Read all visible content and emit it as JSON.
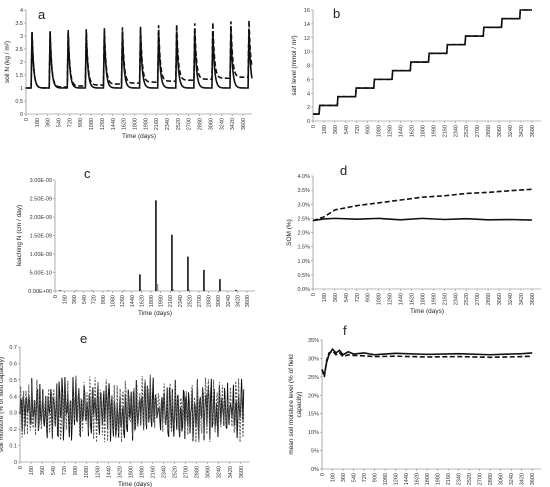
{
  "chart_data": [
    {
      "panel": "a",
      "type": "line",
      "xlabel": "Time (days)",
      "ylabel": "soil N (kg / m²)",
      "ylim": [
        0,
        4
      ],
      "yticks": [
        "0",
        "0.5",
        "1",
        "1.5",
        "2",
        "2.5",
        "3",
        "3.5",
        "4"
      ],
      "xticks": [
        "0",
        "180",
        "360",
        "540",
        "720",
        "900",
        "1080",
        "1260",
        "1440",
        "1620",
        "1800",
        "1980",
        "2160",
        "2340",
        "2520",
        "2700",
        "2880",
        "3060",
        "3240",
        "3420",
        "3600"
      ],
      "series": [
        {
          "style": "solid",
          "cycle": {
            "period": 300,
            "first_peak_day": 100,
            "base": [
              1.0,
              1.0
            ],
            "peak": [
              3.15,
              3.2
            ]
          }
        },
        {
          "style": "dashed",
          "cycle": {
            "period": 300,
            "first_peak_day": 100,
            "base": [
              1.0,
              1.45
            ],
            "peak": [
              3.15,
              3.6
            ]
          }
        }
      ]
    },
    {
      "panel": "b",
      "type": "line",
      "xlabel": "",
      "ylabel": "salt level (mmol / m²)",
      "ylim": [
        0,
        16
      ],
      "yticks": [
        "0",
        "2",
        "4",
        "6",
        "8",
        "10",
        "12",
        "14",
        "16"
      ],
      "xticks": [
        "0",
        "180",
        "360",
        "540",
        "720",
        "900",
        "1080",
        "1260",
        "1440",
        "1620",
        "1800",
        "1980",
        "2160",
        "2340",
        "2520",
        "2700",
        "2880",
        "3060",
        "3240",
        "3420",
        "3600"
      ],
      "series": [
        {
          "style": "solid",
          "steps": {
            "start_day": 0,
            "start_value": 1.0,
            "step_days": 300,
            "first_step_day": 100,
            "step_size": 1.25,
            "end_day": 3600
          }
        },
        {
          "style": "dashed",
          "steps": {
            "start_day": 0,
            "start_value": 1.0,
            "step_days": 300,
            "first_step_day": 100,
            "step_size": 1.25,
            "end_day": 3600
          }
        }
      ]
    },
    {
      "panel": "c",
      "type": "bar",
      "xlabel": "Time (days)",
      "ylabel": "leaching N (cm / day)",
      "ylim": [
        0,
        3e-09
      ],
      "yticks": [
        "0.00E+00",
        "5.00E-10",
        "1.00E-09",
        "1.50E-09",
        "2.00E-09",
        "2.50E-09",
        "3.00E-09"
      ],
      "xticks": [
        "0",
        "180",
        "360",
        "540",
        "720",
        "900",
        "1080",
        "1260",
        "1440",
        "1620",
        "1800",
        "1980",
        "2160",
        "2340",
        "2520",
        "2700",
        "2880",
        "3060",
        "3240",
        "3420",
        "3600"
      ],
      "series": [
        {
          "style": "solid",
          "x": [
            100,
            400,
            700,
            1000,
            1300,
            1600,
            1900,
            2200,
            2500,
            2800,
            3100,
            3400
          ],
          "values": [
            2e-11,
            1e-11,
            1e-11,
            1e-11,
            1e-11,
            4.5e-10,
            2.45e-09,
            1.52e-09,
            9.3e-10,
            5.7e-10,
            3.2e-10,
            3e-11
          ]
        },
        {
          "style": "dashed",
          "x": [
            100,
            400,
            700,
            1000,
            1300,
            1600,
            1900,
            2200,
            2500,
            2800,
            3100,
            3400
          ],
          "values": [
            2e-11,
            1e-11,
            1e-11,
            1e-11,
            1e-11,
            2e-11,
            1.9e-10,
            5e-11,
            3e-11,
            2e-11,
            1e-11,
            1e-11
          ]
        }
      ]
    },
    {
      "panel": "d",
      "type": "line",
      "xlabel": "Time (days)",
      "ylabel": "SOM (%)",
      "ylim": [
        0,
        4
      ],
      "yticks": [
        "0.0%",
        "0.5%",
        "1.0%",
        "1.5%",
        "2.0%",
        "2.5%",
        "3.0%",
        "3.5%",
        "4.0%"
      ],
      "xticks": [
        "0",
        "180",
        "360",
        "540",
        "720",
        "900",
        "1080",
        "1260",
        "1440",
        "1620",
        "1800",
        "1980",
        "2160",
        "2340",
        "2520",
        "2700",
        "2880",
        "3060",
        "3240",
        "3420",
        "3600"
      ],
      "series": [
        {
          "style": "solid",
          "x": [
            0,
            180,
            360,
            720,
            1080,
            1440,
            1800,
            2160,
            2520,
            2880,
            3240,
            3600
          ],
          "values": [
            2.42,
            2.48,
            2.5,
            2.47,
            2.5,
            2.45,
            2.5,
            2.46,
            2.49,
            2.45,
            2.46,
            2.44
          ]
        },
        {
          "style": "dashed",
          "x": [
            0,
            180,
            360,
            720,
            1080,
            1440,
            1800,
            2160,
            2520,
            2880,
            3240,
            3600
          ],
          "values": [
            2.42,
            2.55,
            2.8,
            2.95,
            3.05,
            3.15,
            3.25,
            3.3,
            3.38,
            3.42,
            3.48,
            3.53
          ]
        }
      ]
    },
    {
      "panel": "e",
      "type": "line",
      "xlabel": "Time (days)",
      "ylabel": "soil moisture (% of field capacity)",
      "ylim": [
        0,
        0.7
      ],
      "yticks": [
        "0",
        "0.1",
        "0.2",
        "0.3",
        "0.4",
        "0.5",
        "0.6",
        "0.7"
      ],
      "xticks": [
        "0",
        "180",
        "360",
        "540",
        "720",
        "900",
        "1080",
        "1260",
        "1440",
        "1620",
        "1800",
        "1980",
        "2160",
        "2340",
        "2520",
        "2700",
        "2880",
        "3060",
        "3240",
        "3420",
        "3600"
      ],
      "series": [
        {
          "style": "solid",
          "oscillation": {
            "mean": 0.32,
            "amplitude": 0.12,
            "min": 0.12,
            "max": 0.65,
            "period_days": 45
          }
        },
        {
          "style": "dashed",
          "oscillation": {
            "mean": 0.32,
            "amplitude": 0.13,
            "min": 0.12,
            "max": 0.65,
            "period_days": 45
          }
        }
      ]
    },
    {
      "panel": "f",
      "type": "line",
      "xlabel": "Time (days)",
      "ylabel": "mean soil moisture level (% of field capacity)",
      "ylim": [
        0,
        35
      ],
      "yticks": [
        "0%",
        "5%",
        "10%",
        "15%",
        "20%",
        "25%",
        "30%",
        "35%"
      ],
      "xticks": [
        "0",
        "180",
        "360",
        "540",
        "720",
        "900",
        "1080",
        "1260",
        "1440",
        "1620",
        "1800",
        "1980",
        "2160",
        "2340",
        "2520",
        "2700",
        "2880",
        "3060",
        "3240",
        "3420",
        "3600"
      ],
      "series": [
        {
          "style": "solid",
          "x": [
            0,
            40,
            80,
            120,
            180,
            240,
            300,
            360,
            450,
            540,
            720,
            900,
            1260,
            1800,
            2340,
            2880,
            3420,
            3600
          ],
          "values": [
            27,
            25.5,
            29,
            31,
            32.5,
            31.5,
            32.2,
            31,
            31.8,
            31.2,
            31.5,
            31,
            31.4,
            31.1,
            31.3,
            31,
            31.3,
            31.5
          ]
        },
        {
          "style": "dashed",
          "x": [
            0,
            40,
            80,
            120,
            180,
            240,
            300,
            360,
            450,
            540,
            720,
            900,
            1260,
            1800,
            2340,
            2880,
            3420,
            3600
          ],
          "values": [
            27,
            25,
            29.5,
            31.5,
            32,
            31,
            31.5,
            30.5,
            31,
            30.8,
            30.7,
            30.5,
            30.6,
            30.4,
            30.5,
            30.3,
            30.5,
            30.6
          ]
        }
      ]
    }
  ]
}
